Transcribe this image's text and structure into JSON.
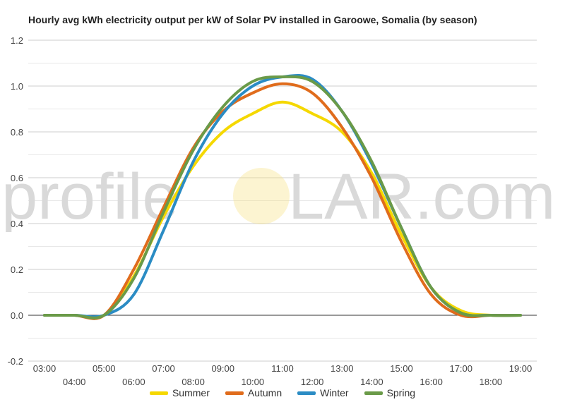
{
  "chart_data": {
    "type": "line",
    "title": "Hourly avg kWh electricity output per kW of Solar PV installed in Garoowe, Somalia (by season)",
    "watermark": {
      "left": "profile",
      "right": "LAR.com",
      "sun_color": "#f5e07a"
    },
    "x": [
      "03:00",
      "04:00",
      "05:00",
      "06:00",
      "07:00",
      "08:00",
      "09:00",
      "10:00",
      "11:00",
      "12:00",
      "13:00",
      "14:00",
      "15:00",
      "16:00",
      "17:00",
      "18:00",
      "19:00"
    ],
    "ylim": [
      -0.2,
      1.2
    ],
    "yticks": [
      -0.2,
      0.0,
      0.2,
      0.4,
      0.6,
      0.8,
      1.0,
      1.2
    ],
    "ytick_labels": [
      "-0.2",
      "0.0",
      "0.2",
      "0.4",
      "0.6",
      "0.8",
      "1.0",
      "1.2"
    ],
    "grid": true,
    "legend_position": "bottom",
    "series": [
      {
        "name": "Summer",
        "color": "#f5d800",
        "values": [
          0,
          0,
          0,
          0.17,
          0.43,
          0.65,
          0.8,
          0.88,
          0.93,
          0.88,
          0.8,
          0.62,
          0.35,
          0.12,
          0.02,
          0,
          0
        ]
      },
      {
        "name": "Autumn",
        "color": "#e06c1c",
        "values": [
          0,
          0,
          0,
          0.2,
          0.47,
          0.73,
          0.89,
          0.97,
          1.01,
          0.97,
          0.82,
          0.6,
          0.32,
          0.09,
          0,
          0,
          0
        ]
      },
      {
        "name": "Winter",
        "color": "#2b8cc4",
        "values": [
          0,
          0,
          0,
          0.09,
          0.37,
          0.67,
          0.88,
          1.0,
          1.04,
          1.03,
          0.89,
          0.66,
          0.38,
          0.12,
          0.01,
          0,
          0
        ]
      },
      {
        "name": "Spring",
        "color": "#6a9a48",
        "values": [
          0,
          0,
          0,
          0.16,
          0.45,
          0.72,
          0.91,
          1.02,
          1.04,
          1.02,
          0.89,
          0.67,
          0.38,
          0.12,
          0.01,
          0,
          0
        ]
      }
    ]
  }
}
